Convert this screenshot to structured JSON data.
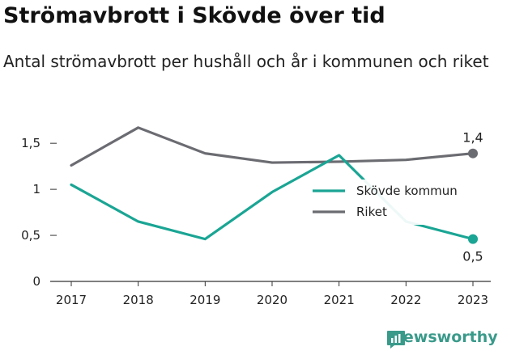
{
  "title": "Strömavbrott i Skövde över tid",
  "subtitle": "Antal strömavbrott per hushåll och år i kommunen och riket",
  "brand": {
    "name": "Newsworthy",
    "icon": "newsworthy-logo-icon"
  },
  "colors": {
    "skovde": "#1aa594",
    "riket": "#6b6b72",
    "axis": "#333333"
  },
  "chart_data": {
    "type": "line",
    "x": [
      "2017",
      "2018",
      "2019",
      "2020",
      "2021",
      "2022",
      "2023"
    ],
    "ylim": [
      0,
      1.8
    ],
    "yticks": [
      {
        "value": 0,
        "label": "0"
      },
      {
        "value": 0.5,
        "label": "0,5"
      },
      {
        "value": 1,
        "label": "1"
      },
      {
        "value": 1.5,
        "label": "1,5"
      }
    ],
    "grid": false,
    "legend_position": "center-right",
    "series": [
      {
        "name": "Skövde kommun",
        "color": "#1aa594",
        "values": [
          1.05,
          0.65,
          0.46,
          0.97,
          1.37,
          0.65,
          0.46
        ],
        "end_label": "0,5"
      },
      {
        "name": "Riket",
        "color": "#6b6b72",
        "values": [
          1.26,
          1.67,
          1.39,
          1.29,
          1.3,
          1.32,
          1.39
        ],
        "end_label": "1,4"
      }
    ]
  }
}
